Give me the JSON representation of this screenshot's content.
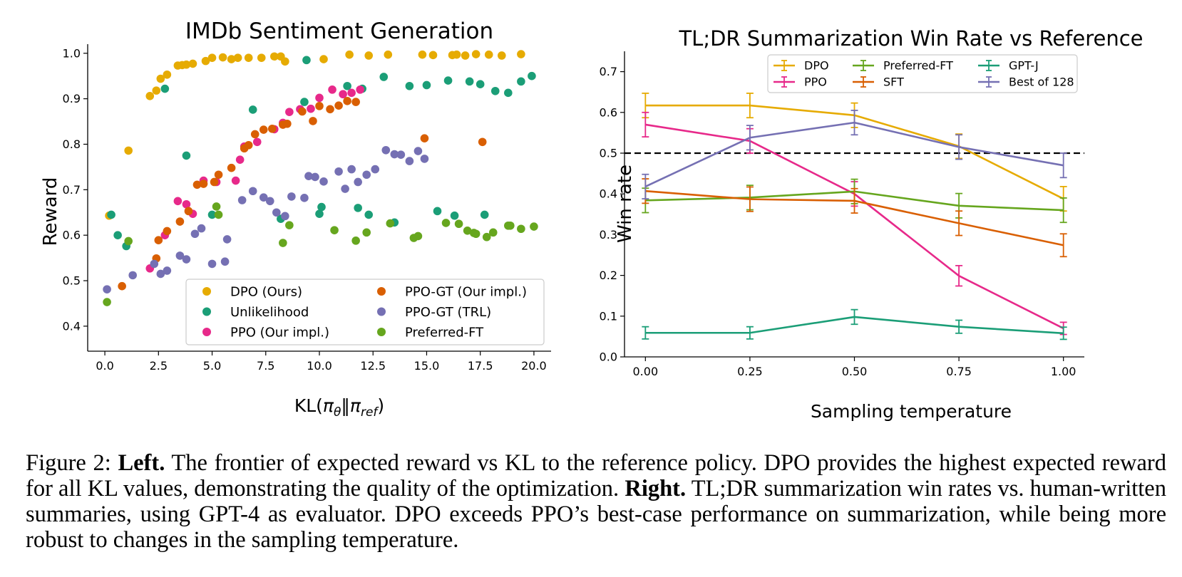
{
  "figure": {
    "caption": {
      "prefix": "Figure 2: ",
      "left_label": "Left.",
      "left_text": " The frontier of expected reward vs KL to the reference policy. DPO provides the highest expected reward for all KL values, demonstrating the quality of the optimization. ",
      "right_label": "Right.",
      "right_text": " TL;DR summarization win rates vs. human-written summaries, using GPT-4 as evaluator. DPO exceeds PPO’s best-case performance on summarization, while being more robust to changes in the sampling temperature."
    }
  },
  "chart_data": [
    {
      "type": "scatter",
      "title": "IMDb Sentiment Generation",
      "xlabel": "KL(π_θ‖π_ref)",
      "ylabel": "Reward",
      "xlim": [
        -0.8,
        20.8
      ],
      "ylim": [
        0.345,
        1.02
      ],
      "xticks": [
        0.0,
        2.5,
        5.0,
        7.5,
        10.0,
        12.5,
        15.0,
        17.5,
        20.0
      ],
      "xtick_labels": [
        "0.0",
        "2.5",
        "5.0",
        "7.5",
        "10.0",
        "12.5",
        "15.0",
        "17.5",
        "20.0"
      ],
      "yticks": [
        0.4,
        0.5,
        0.6,
        0.7,
        0.8,
        0.9,
        1.0
      ],
      "ytick_labels": [
        "0.4",
        "0.5",
        "0.6",
        "0.7",
        "0.8",
        "0.9",
        "1.0"
      ],
      "grid": false,
      "legend": "lower-right",
      "series": [
        {
          "name": "DPO (Ours)",
          "color": "#e6ab02",
          "points": [
            [
              0.2,
              0.643
            ],
            [
              1.1,
              0.786
            ],
            [
              2.1,
              0.906
            ],
            [
              2.4,
              0.918
            ],
            [
              2.6,
              0.944
            ],
            [
              2.9,
              0.953
            ],
            [
              3.4,
              0.973
            ],
            [
              3.6,
              0.974
            ],
            [
              3.8,
              0.975
            ],
            [
              4.1,
              0.977
            ],
            [
              4.7,
              0.983
            ],
            [
              5.0,
              0.99
            ],
            [
              5.5,
              0.991
            ],
            [
              5.9,
              0.987
            ],
            [
              6.2,
              0.99
            ],
            [
              6.7,
              0.99
            ],
            [
              7.3,
              0.99
            ],
            [
              7.9,
              0.993
            ],
            [
              8.2,
              0.993
            ],
            [
              8.4,
              0.982
            ],
            [
              10.2,
              0.987
            ],
            [
              11.4,
              0.997
            ],
            [
              12.3,
              0.995
            ],
            [
              13.2,
              0.997
            ],
            [
              14.8,
              0.997
            ],
            [
              15.3,
              0.996
            ],
            [
              16.2,
              0.996
            ],
            [
              16.4,
              0.997
            ],
            [
              16.8,
              0.995
            ],
            [
              17.3,
              0.998
            ],
            [
              17.9,
              0.997
            ],
            [
              18.5,
              0.995
            ],
            [
              19.4,
              0.998
            ]
          ]
        },
        {
          "name": "Unlikelihood",
          "color": "#1b9e77",
          "points": [
            [
              0.3,
              0.645
            ],
            [
              0.6,
              0.6
            ],
            [
              1.0,
              0.576
            ],
            [
              2.8,
              0.922
            ],
            [
              3.8,
              0.775
            ],
            [
              5.0,
              0.645
            ],
            [
              6.9,
              0.876
            ],
            [
              8.2,
              0.636
            ],
            [
              9.4,
              0.985
            ],
            [
              9.3,
              0.893
            ],
            [
              10.0,
              0.647
            ],
            [
              10.1,
              0.662
            ],
            [
              11.3,
              0.928
            ],
            [
              11.8,
              0.66
            ],
            [
              12.0,
              0.922
            ],
            [
              12.3,
              0.645
            ],
            [
              13.0,
              0.948
            ],
            [
              13.5,
              0.628
            ],
            [
              14.2,
              0.928
            ],
            [
              15.0,
              0.93
            ],
            [
              15.5,
              0.653
            ],
            [
              16.0,
              0.94
            ],
            [
              16.3,
              0.643
            ],
            [
              17.0,
              0.938
            ],
            [
              17.5,
              0.932
            ],
            [
              17.7,
              0.645
            ],
            [
              18.2,
              0.917
            ],
            [
              18.8,
              0.913
            ],
            [
              19.4,
              0.938
            ],
            [
              19.9,
              0.95
            ]
          ]
        },
        {
          "name": "PPO (Our impl.)",
          "color": "#e7298a",
          "points": [
            [
              2.1,
              0.527
            ],
            [
              2.8,
              0.6
            ],
            [
              3.4,
              0.675
            ],
            [
              3.8,
              0.668
            ],
            [
              4.1,
              0.647
            ],
            [
              4.6,
              0.72
            ],
            [
              5.2,
              0.717
            ],
            [
              6.1,
              0.72
            ],
            [
              6.3,
              0.766
            ],
            [
              6.5,
              0.795
            ],
            [
              7.1,
              0.805
            ],
            [
              7.9,
              0.833
            ],
            [
              8.3,
              0.847
            ],
            [
              8.6,
              0.871
            ],
            [
              9.1,
              0.877
            ],
            [
              9.6,
              0.878
            ],
            [
              10.0,
              0.902
            ],
            [
              10.6,
              0.92
            ],
            [
              11.1,
              0.91
            ],
            [
              11.5,
              0.913
            ],
            [
              11.9,
              0.92
            ]
          ]
        },
        {
          "name": "PPO-GT (Our impl.)",
          "color": "#d95f02",
          "points": [
            [
              0.8,
              0.488
            ],
            [
              2.4,
              0.549
            ],
            [
              2.5,
              0.589
            ],
            [
              2.9,
              0.609
            ],
            [
              3.5,
              0.63
            ],
            [
              3.9,
              0.653
            ],
            [
              4.3,
              0.711
            ],
            [
              4.6,
              0.713
            ],
            [
              5.1,
              0.717
            ],
            [
              5.3,
              0.733
            ],
            [
              5.9,
              0.748
            ],
            [
              6.5,
              0.791
            ],
            [
              6.7,
              0.798
            ],
            [
              7.0,
              0.822
            ],
            [
              7.4,
              0.832
            ],
            [
              7.8,
              0.834
            ],
            [
              8.3,
              0.843
            ],
            [
              8.5,
              0.845
            ],
            [
              9.2,
              0.872
            ],
            [
              9.7,
              0.851
            ],
            [
              10.0,
              0.884
            ],
            [
              10.5,
              0.877
            ],
            [
              10.9,
              0.885
            ],
            [
              11.3,
              0.895
            ],
            [
              11.7,
              0.893
            ],
            [
              14.9,
              0.813
            ],
            [
              17.6,
              0.805
            ]
          ]
        },
        {
          "name": "PPO-GT (TRL)",
          "color": "#7570b3",
          "points": [
            [
              0.1,
              0.481
            ],
            [
              1.3,
              0.512
            ],
            [
              2.3,
              0.537
            ],
            [
              2.6,
              0.515
            ],
            [
              2.9,
              0.522
            ],
            [
              3.5,
              0.555
            ],
            [
              3.8,
              0.547
            ],
            [
              4.2,
              0.603
            ],
            [
              4.5,
              0.615
            ],
            [
              5.0,
              0.537
            ],
            [
              5.6,
              0.542
            ],
            [
              5.7,
              0.591
            ],
            [
              6.4,
              0.677
            ],
            [
              6.9,
              0.697
            ],
            [
              7.4,
              0.683
            ],
            [
              7.7,
              0.675
            ],
            [
              8.0,
              0.65
            ],
            [
              8.4,
              0.642
            ],
            [
              8.7,
              0.685
            ],
            [
              9.3,
              0.682
            ],
            [
              9.5,
              0.73
            ],
            [
              9.8,
              0.728
            ],
            [
              10.2,
              0.718
            ],
            [
              10.9,
              0.74
            ],
            [
              11.2,
              0.702
            ],
            [
              11.5,
              0.745
            ],
            [
              11.8,
              0.717
            ],
            [
              12.2,
              0.733
            ],
            [
              12.6,
              0.745
            ],
            [
              13.1,
              0.787
            ],
            [
              13.5,
              0.778
            ],
            [
              13.8,
              0.777
            ],
            [
              14.2,
              0.763
            ],
            [
              14.6,
              0.785
            ],
            [
              14.9,
              0.768
            ]
          ]
        },
        {
          "name": "Preferred-FT",
          "color": "#66a61e",
          "points": [
            [
              0.1,
              0.453
            ],
            [
              1.1,
              0.587
            ],
            [
              5.2,
              0.663
            ],
            [
              5.3,
              0.645
            ],
            [
              8.3,
              0.583
            ],
            [
              8.6,
              0.622
            ],
            [
              10.7,
              0.611
            ],
            [
              11.7,
              0.588
            ],
            [
              12.2,
              0.606
            ],
            [
              13.3,
              0.626
            ],
            [
              14.4,
              0.594
            ],
            [
              14.6,
              0.598
            ],
            [
              15.9,
              0.627
            ],
            [
              16.5,
              0.625
            ],
            [
              16.9,
              0.61
            ],
            [
              17.2,
              0.605
            ],
            [
              17.3,
              0.603
            ],
            [
              17.8,
              0.596
            ],
            [
              18.1,
              0.606
            ],
            [
              18.8,
              0.621
            ],
            [
              18.9,
              0.621
            ],
            [
              19.4,
              0.614
            ],
            [
              20.0,
              0.619
            ]
          ]
        }
      ]
    },
    {
      "type": "line",
      "title": "TL;DR Summarization Win Rate vs Reference",
      "xlabel": "Sampling temperature",
      "ylabel": "Win rate",
      "x": [
        0.0,
        0.25,
        0.5,
        0.75,
        1.0
      ],
      "xlim": [
        -0.05,
        1.05
      ],
      "ylim": [
        0.0,
        0.75
      ],
      "xticks": [
        0.0,
        0.25,
        0.5,
        0.75,
        1.0
      ],
      "xtick_labels": [
        "0.00",
        "0.25",
        "0.50",
        "0.75",
        "1.00"
      ],
      "yticks": [
        0.0,
        0.1,
        0.2,
        0.3,
        0.4,
        0.5,
        0.6,
        0.7
      ],
      "ytick_labels": [
        "0.0",
        "0.1",
        "0.2",
        "0.3",
        "0.4",
        "0.5",
        "0.6",
        "0.7"
      ],
      "reference_line": 0.5,
      "grid": false,
      "legend": "top-right",
      "series": [
        {
          "name": "DPO",
          "color": "#e6ab02",
          "values": [
            0.617,
            0.617,
            0.593,
            0.517,
            0.388
          ],
          "errors": [
            0.03,
            0.03,
            0.03,
            0.03,
            0.03
          ]
        },
        {
          "name": "PPO",
          "color": "#e7298a",
          "values": [
            0.57,
            0.53,
            0.4,
            0.199,
            0.07
          ],
          "errors": [
            0.03,
            0.03,
            0.03,
            0.025,
            0.015
          ]
        },
        {
          "name": "Preferred-FT",
          "color": "#66a61e",
          "values": [
            0.384,
            0.391,
            0.406,
            0.371,
            0.36
          ],
          "errors": [
            0.03,
            0.03,
            0.03,
            0.03,
            0.03
          ]
        },
        {
          "name": "SFT",
          "color": "#d95f02",
          "values": [
            0.407,
            0.387,
            0.383,
            0.328,
            0.274
          ],
          "errors": [
            0.03,
            0.03,
            0.03,
            0.03,
            0.028
          ]
        },
        {
          "name": "GPT-J",
          "color": "#1b9e77",
          "values": [
            0.059,
            0.059,
            0.098,
            0.074,
            0.058
          ],
          "errors": [
            0.015,
            0.015,
            0.018,
            0.016,
            0.015
          ]
        },
        {
          "name": "Best of 128",
          "color": "#7570b3",
          "values": [
            0.418,
            0.538,
            0.575,
            0.515,
            0.47
          ],
          "errors": [
            0.03,
            0.03,
            0.03,
            0.03,
            0.03
          ]
        }
      ]
    }
  ]
}
